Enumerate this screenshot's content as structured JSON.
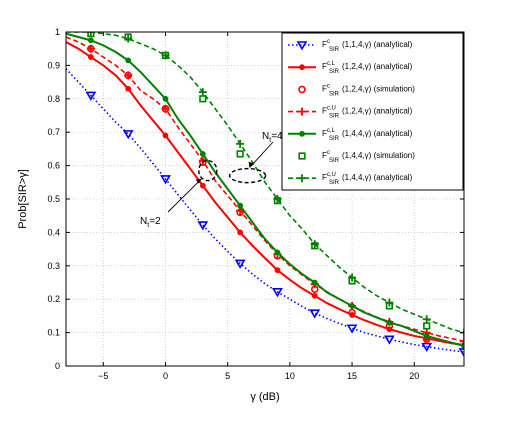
{
  "colors": {
    "blue": "#0000ff",
    "red": "#ff0000",
    "green": "#008000",
    "grid": "#bbbbbb"
  },
  "chart_data": {
    "type": "line",
    "xlabel": "γ (dB)",
    "ylabel": "Prob[SIR>γ]",
    "xlim": [
      -8,
      24
    ],
    "ylim": [
      0,
      1
    ],
    "xticks": [
      -5,
      0,
      5,
      10,
      15,
      20
    ],
    "xtick_labels": [
      "−5",
      "0",
      "5",
      "10",
      "15",
      "20"
    ],
    "yticks": [
      0,
      0.1,
      0.2,
      0.3,
      0.4,
      0.5,
      0.6,
      0.7,
      0.8,
      0.9,
      1
    ],
    "ytick_labels": [
      "0",
      "0.1",
      "0.2",
      "0.3",
      "0.4",
      "0.5",
      "0.6",
      "0.7",
      "0.8",
      "0.9",
      "1"
    ],
    "grid": "dotted",
    "legend_position": "top-right",
    "series": [
      {
        "name": "F^c_SIR(1,1,4,γ) (analytical)",
        "legend": {
          "base": "F",
          "sup": "c",
          "sub": "SIR",
          "args": "(1,1,4,γ) (analytical)"
        },
        "color": "blue",
        "line": "dotted",
        "marker": "triangle-down",
        "marker_every": 3,
        "x": [
          -8,
          -7,
          -6,
          -5,
          -4,
          -3,
          -2,
          -1,
          0,
          1,
          2,
          3,
          4,
          5,
          6,
          7,
          8,
          9,
          10,
          11,
          12,
          13,
          14,
          15,
          16,
          17,
          18,
          19,
          20,
          21,
          22,
          23,
          24
        ],
        "y": [
          0.89,
          0.85,
          0.81,
          0.77,
          0.73,
          0.695,
          0.652,
          0.606,
          0.56,
          0.513,
          0.467,
          0.422,
          0.381,
          0.343,
          0.307,
          0.275,
          0.246,
          0.222,
          0.2,
          0.178,
          0.158,
          0.142,
          0.127,
          0.113,
          0.1,
          0.09,
          0.08,
          0.072,
          0.064,
          0.058,
          0.052,
          0.047,
          0.042
        ]
      },
      {
        "name": "F^c,L_SIR(1,2,4,γ) (analytical)",
        "legend": {
          "base": "F",
          "sup": "c,L",
          "sub": "SIR",
          "args": "(1,2,4,γ) (analytical)"
        },
        "color": "red",
        "line": "solid",
        "marker": "dot",
        "marker_every": 3,
        "x": [
          -8,
          -7,
          -6,
          -5,
          -4,
          -3,
          -2,
          -1,
          0,
          1,
          2,
          3,
          4,
          5,
          6,
          7,
          8,
          9,
          10,
          11,
          12,
          13,
          14,
          15,
          16,
          17,
          18,
          19,
          20,
          21,
          22,
          23,
          24
        ],
        "y": [
          0.97,
          0.95,
          0.925,
          0.9,
          0.87,
          0.83,
          0.78,
          0.735,
          0.69,
          0.64,
          0.59,
          0.54,
          0.49,
          0.445,
          0.4,
          0.36,
          0.323,
          0.287,
          0.258,
          0.232,
          0.21,
          0.188,
          0.17,
          0.153,
          0.137,
          0.123,
          0.11,
          0.1,
          0.09,
          0.083,
          0.075,
          0.068,
          0.063
        ]
      },
      {
        "name": "F^c_SIR(1,2,4,γ) (simulation)",
        "legend": {
          "base": "F",
          "sup": "c",
          "sub": "SIR",
          "args": "(1,2,4,γ) (simulation)"
        },
        "color": "red",
        "line": "none",
        "marker": "circle",
        "x": [
          -6,
          -3,
          0,
          3,
          6,
          9,
          12,
          15,
          18,
          21
        ],
        "y": [
          0.95,
          0.87,
          0.77,
          0.61,
          0.46,
          0.33,
          0.23,
          0.16,
          0.12,
          0.08
        ]
      },
      {
        "name": "F^c,U_SIR(1,2,4,γ) (analytical)",
        "legend": {
          "base": "F",
          "sup": "c,U",
          "sub": "SIR",
          "args": "(1,2,4,γ) (analytical)"
        },
        "color": "red",
        "line": "dashed",
        "marker": "plus",
        "marker_every": 3,
        "x": [
          -8,
          -7,
          -6,
          -5,
          -4,
          -3,
          -2,
          -1,
          0,
          1,
          2,
          3,
          4,
          5,
          6,
          7,
          8,
          9,
          10,
          11,
          12,
          13,
          14,
          15,
          16,
          17,
          18,
          19,
          20,
          21,
          22,
          23,
          24
        ],
        "y": [
          0.985,
          0.97,
          0.95,
          0.925,
          0.9,
          0.87,
          0.825,
          0.8,
          0.77,
          0.715,
          0.665,
          0.615,
          0.555,
          0.51,
          0.465,
          0.42,
          0.375,
          0.335,
          0.3,
          0.272,
          0.245,
          0.222,
          0.2,
          0.18,
          0.162,
          0.146,
          0.132,
          0.12,
          0.11,
          0.1,
          0.09,
          0.082,
          0.074
        ]
      },
      {
        "name": "F^c,L_SIR(1,4,4,γ) (analytical)",
        "legend": {
          "base": "F",
          "sup": "c,L",
          "sub": "SIR",
          "args": "(1,4,4,γ) (analytical)"
        },
        "color": "green",
        "line": "solid",
        "marker": "dot",
        "marker_every": 3,
        "x": [
          -8,
          -7,
          -6,
          -5,
          -4,
          -3,
          -2,
          -1,
          0,
          1,
          2,
          3,
          4,
          5,
          6,
          7,
          8,
          9,
          10,
          11,
          12,
          13,
          14,
          15,
          16,
          17,
          18,
          19,
          20,
          21,
          22,
          23,
          24
        ],
        "y": [
          0.995,
          0.985,
          0.975,
          0.96,
          0.94,
          0.915,
          0.88,
          0.84,
          0.8,
          0.74,
          0.69,
          0.635,
          0.58,
          0.53,
          0.48,
          0.43,
          0.38,
          0.34,
          0.305,
          0.275,
          0.25,
          0.22,
          0.2,
          0.18,
          0.16,
          0.145,
          0.13,
          0.12,
          0.105,
          0.09,
          0.08,
          0.07,
          0.06
        ]
      },
      {
        "name": "F^c_SIR(1,4,4,γ) (simulation)",
        "legend": {
          "base": "F",
          "sup": "c",
          "sub": "SIR",
          "args": "(1,4,4,γ) (simulation)"
        },
        "color": "green",
        "line": "none",
        "marker": "square",
        "x": [
          -6,
          -3,
          0,
          3,
          6,
          9,
          12,
          15,
          18,
          21
        ],
        "y": [
          0.995,
          0.985,
          0.93,
          0.8,
          0.635,
          0.495,
          0.36,
          0.255,
          0.18,
          0.12
        ]
      },
      {
        "name": "F^c,U_SIR(1,4,4,γ) (analytical)",
        "legend": {
          "base": "F",
          "sup": "c,U",
          "sub": "SIR",
          "args": "(1,4,4,γ) (analytical)"
        },
        "color": "green",
        "line": "dashed",
        "marker": "plus",
        "marker_every": 3,
        "x": [
          -8,
          -7,
          -6,
          -5,
          -4,
          -3,
          -2,
          -1,
          0,
          1,
          2,
          3,
          4,
          5,
          6,
          7,
          8,
          9,
          10,
          11,
          12,
          13,
          14,
          15,
          16,
          17,
          18,
          19,
          20,
          21,
          22,
          23,
          24
        ],
        "y": [
          1.0,
          1.0,
          1.0,
          0.995,
          0.99,
          0.98,
          0.965,
          0.95,
          0.93,
          0.9,
          0.865,
          0.82,
          0.77,
          0.72,
          0.665,
          0.61,
          0.55,
          0.5,
          0.45,
          0.41,
          0.365,
          0.33,
          0.295,
          0.265,
          0.235,
          0.21,
          0.19,
          0.17,
          0.155,
          0.14,
          0.125,
          0.11,
          0.1
        ]
      }
    ],
    "annotations": [
      {
        "base": "N",
        "sub": "t",
        "rest": "=4",
        "ellipse_center": [
          6.6,
          0.57
        ]
      },
      {
        "base": "N",
        "sub": "t",
        "rest": "=2",
        "ellipse_center": [
          3.4,
          0.585
        ]
      }
    ]
  }
}
